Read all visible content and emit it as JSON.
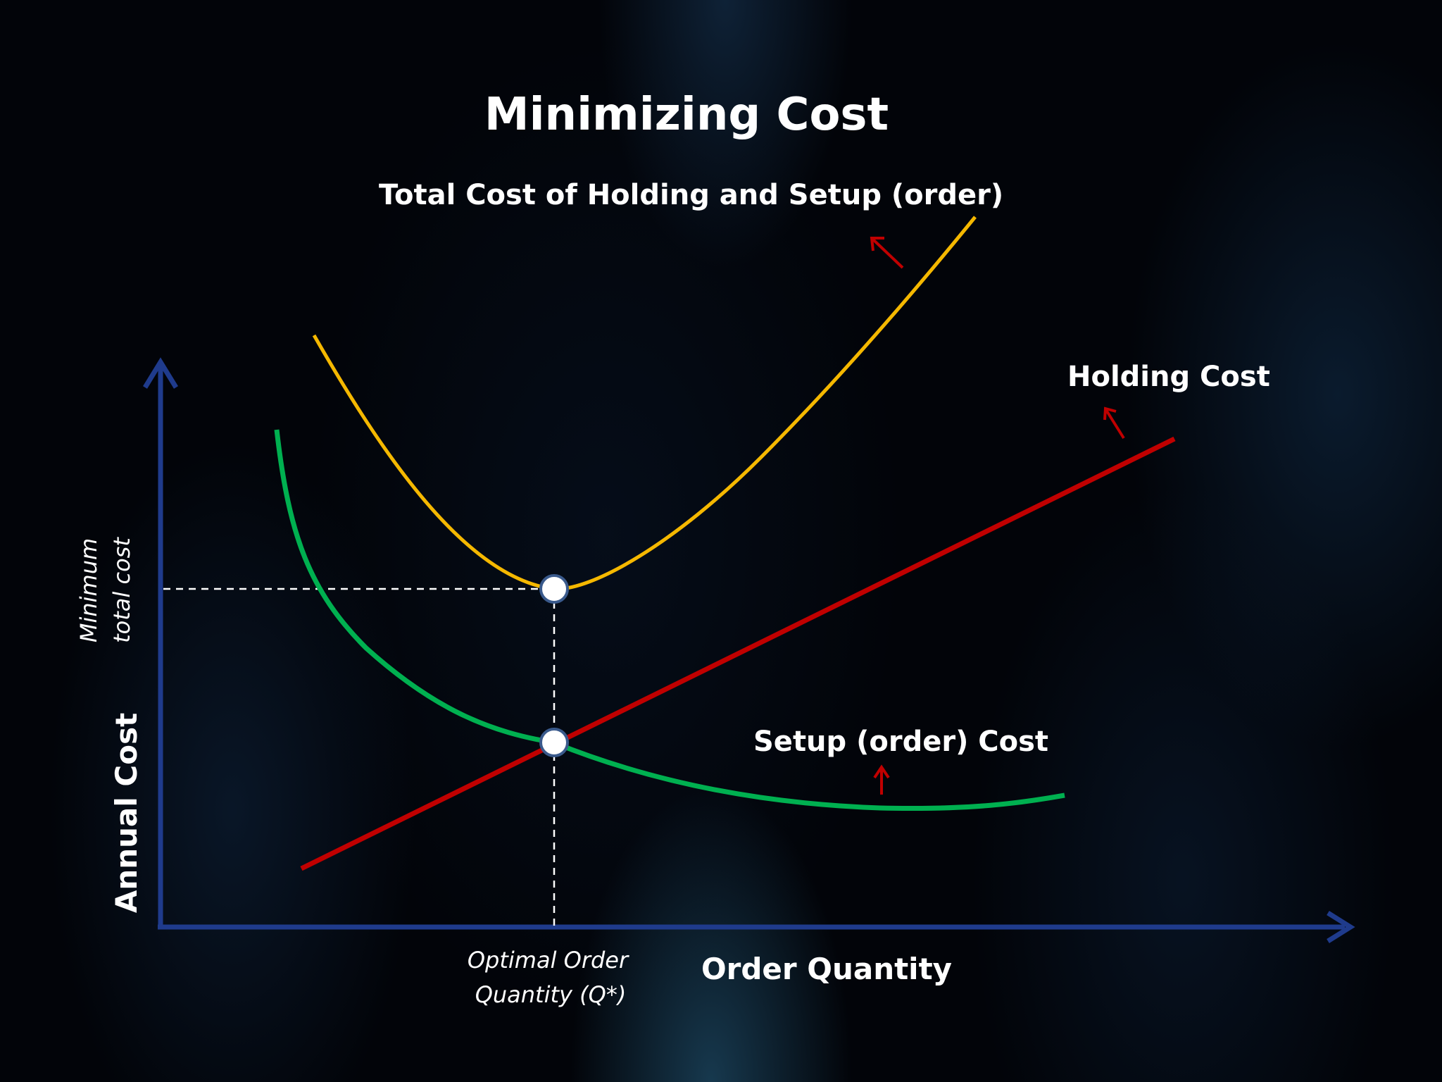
{
  "title": "Minimizing Cost",
  "labels": {
    "total_cost": "Total Cost of Holding and Setup (order)",
    "holding_cost": "Holding Cost",
    "setup_cost": "Setup (order) Cost",
    "optimal_line1": "Optimal Order",
    "optimal_line2": "Quantity  (Q*)",
    "x_axis": "Order Quantity",
    "y_axis": "Annual Cost",
    "min_cost_line1": "Minimum",
    "min_cost_line2": "total cost"
  },
  "colors": {
    "total_cost_curve": "#f5b800",
    "holding_cost_curve": "#c00000",
    "setup_cost_curve": "#00b050",
    "axis": "#1f3b8c",
    "arrow": "#c00000",
    "point_fill": "#ffffff",
    "point_stroke": "#3a5a8c"
  }
}
